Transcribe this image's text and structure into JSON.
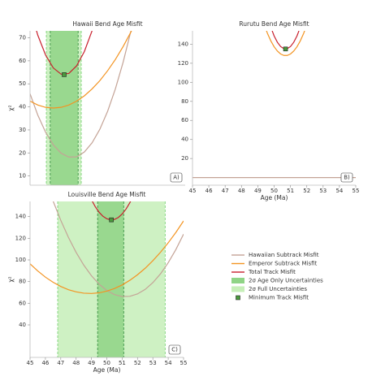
{
  "chart_data": [
    {
      "type": "line",
      "title": "Hawaii Bend Age Misfit",
      "ylabel": "χ²",
      "annotation": "A)",
      "xlim": [
        45,
        55
      ],
      "ylim": [
        6,
        73
      ],
      "yticks": [
        10,
        20,
        30,
        40,
        50,
        60,
        70
      ],
      "bands": [
        {
          "color": "#c6efb8",
          "x0": 46.05,
          "x1": 48.3
        },
        {
          "color": "#8fd486",
          "x0": 46.3,
          "x1": 48.1
        }
      ],
      "series": [
        {
          "color": "#c4a396",
          "x": [
            45,
            45.5,
            46,
            46.5,
            47,
            47.5,
            48,
            48.5,
            49,
            49.5,
            50,
            50.5,
            51,
            51.5,
            52
          ],
          "values": [
            45.7,
            36.4,
            29,
            23.5,
            19.9,
            18.2,
            18.3,
            20.4,
            24.4,
            30.3,
            38.1,
            47.8,
            59.4,
            72.9,
            88.3
          ]
        },
        {
          "color": "#f39422",
          "x": [
            45,
            45.5,
            46,
            46.5,
            47,
            47.5,
            48,
            48.5,
            49,
            49.5,
            50,
            50.5,
            51,
            51.5,
            52
          ],
          "values": [
            42.5,
            40.8,
            39.8,
            39.5,
            39.8,
            40.8,
            42.5,
            44.8,
            47.8,
            51.4,
            55.7,
            60.6,
            66.2,
            72.5,
            79.4
          ]
        },
        {
          "color": "#c8202d",
          "x": [
            45,
            45.5,
            46,
            46.5,
            47,
            47.5,
            48,
            48.5,
            49,
            49.5
          ],
          "values": [
            82.6,
            71.1,
            62.5,
            56.9,
            54.2,
            54.5,
            57.8,
            64,
            73.1,
            85.2
          ]
        }
      ],
      "minimum": {
        "x": 47.2,
        "y": 54
      }
    },
    {
      "type": "line",
      "title": "Rurutu Bend Age Misfit",
      "xlabel": "Age (Ma)",
      "annotation": "B)",
      "xlim": [
        45,
        55
      ],
      "ylim": [
        -8,
        154
      ],
      "xticks": [
        45,
        46,
        47,
        48,
        49,
        50,
        51,
        52,
        53,
        54,
        55
      ],
      "yticks": [
        20,
        40,
        60,
        80,
        100,
        120,
        140
      ],
      "bands": [],
      "series": [
        {
          "color": "#c4a396",
          "x": [
            45,
            55
          ],
          "values": [
            0,
            0
          ]
        },
        {
          "color": "#f39422",
          "x": [
            49.4,
            49.6,
            49.8,
            50,
            50.2,
            50.4,
            50.6,
            50.8,
            51,
            51.2,
            51.4,
            51.6,
            51.8,
            52
          ],
          "values": [
            160,
            151,
            143.4,
            137.3,
            132.8,
            129.7,
            128.2,
            128.2,
            129.7,
            132.8,
            137.3,
            143.4,
            151,
            160
          ]
        },
        {
          "color": "#c8202d",
          "x": [
            49.8,
            50,
            50.2,
            50.4,
            50.6,
            50.8,
            51,
            51.2,
            51.4,
            51.6
          ],
          "values": [
            157.7,
            148.7,
            142,
            137.5,
            135.3,
            135.3,
            137.5,
            142,
            148.7,
            157.7
          ]
        }
      ],
      "minimum": {
        "x": 50.7,
        "y": 135
      }
    },
    {
      "type": "line",
      "title": "Louisville Bend Age Misfit",
      "xlabel": "Age (Ma)",
      "ylabel": "χ²",
      "annotation": "C)",
      "xlim": [
        45,
        55
      ],
      "ylim": [
        10,
        154
      ],
      "xticks": [
        45,
        46,
        47,
        48,
        49,
        50,
        51,
        52,
        53,
        54,
        55
      ],
      "yticks": [
        40,
        60,
        80,
        100,
        120,
        140
      ],
      "bands": [
        {
          "color": "#c6efb8",
          "x0": 46.8,
          "x1": 53.8
        },
        {
          "color": "#8fd486",
          "x0": 49.4,
          "x1": 51.1
        }
      ],
      "series": [
        {
          "color": "#c4a396",
          "x": [
            46.5,
            47,
            47.5,
            48,
            48.5,
            49,
            49.5,
            50,
            50.5,
            51,
            51.5,
            52,
            52.5,
            53,
            53.5,
            54,
            54.5,
            55
          ],
          "values": [
            154.4,
            136.6,
            120.8,
            107,
            95.2,
            85.4,
            77.6,
            71.8,
            68,
            66.2,
            66.4,
            68.6,
            72.8,
            79,
            87.2,
            97.4,
            109.6,
            123.8
          ]
        },
        {
          "color": "#f39422",
          "x": [
            45,
            45.5,
            46,
            46.5,
            47,
            47.5,
            48,
            48.5,
            49,
            49.5,
            50,
            50.5,
            51,
            51.5,
            52,
            52.5,
            53,
            53.5,
            54,
            54.5,
            55
          ],
          "values": [
            96.4,
            89.8,
            84.1,
            79.4,
            75.5,
            72.5,
            70.5,
            69.3,
            69,
            69.6,
            71.2,
            73.6,
            76.9,
            81.2,
            86.3,
            92.3,
            99.3,
            107.1,
            115.8,
            125.4,
            136
          ]
        },
        {
          "color": "#c8202d",
          "x": [
            49,
            49.25,
            49.5,
            49.75,
            50,
            50.25,
            50.5,
            50.75,
            51,
            51.25,
            51.5,
            51.75
          ],
          "values": [
            155.6,
            149.1,
            144,
            140.3,
            138,
            137,
            137.4,
            139.2,
            142.4,
            146.9,
            152.8,
            160
          ]
        }
      ],
      "minimum": {
        "x": 50.3,
        "y": 137
      }
    }
  ],
  "legend": {
    "marker_color": "#4a9a3c",
    "entries": [
      {
        "name": "Hawaiian Subtrack Misfit",
        "kind": "line",
        "color": "#c4a396"
      },
      {
        "name": "Emperor Subtrack Misfit",
        "kind": "line",
        "color": "#f39422"
      },
      {
        "name": "Total Track Misfit",
        "kind": "line",
        "color": "#c8202d"
      },
      {
        "name": "2σ Age Only Uncertainties",
        "kind": "patch",
        "color": "#8fd486"
      },
      {
        "name": "2σ Full Uncertainties",
        "kind": "patch",
        "color": "#c6efb8"
      },
      {
        "name": "Minimum Track Misfit",
        "kind": "marker",
        "color": "#4a9a3c"
      }
    ]
  }
}
